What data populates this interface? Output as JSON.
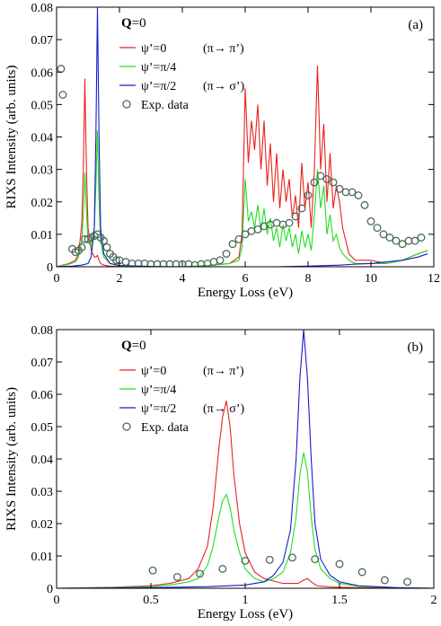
{
  "chart_data": [
    {
      "type": "line",
      "panel_label": "(a)",
      "annotation": {
        "bold": "Q",
        "rest": "=0"
      },
      "xlabel": "Energy Loss (eV)",
      "ylabel": "RIXS Intensity (arb. units)",
      "xlim": [
        0,
        12
      ],
      "ylim": [
        0,
        0.08
      ],
      "xticks": [
        0,
        2,
        4,
        6,
        8,
        10,
        12
      ],
      "xtick_labels": [
        "0",
        "2",
        "4",
        "6",
        "8",
        "10",
        "12"
      ],
      "yticks": [
        0,
        0.01,
        0.02,
        0.03,
        0.04,
        0.05,
        0.06,
        0.07,
        0.08
      ],
      "ytick_labels": [
        "0",
        "0.01",
        "0.02",
        "0.03",
        "0.04",
        "0.05",
        "0.06",
        "0.07",
        "0.08"
      ],
      "legend_position": "top-left",
      "series": [
        {
          "name": "ψ’=0",
          "note": "(π→ π’)",
          "color": "#e8231e",
          "x": [
            0,
            0.2,
            0.4,
            0.6,
            0.7,
            0.8,
            0.85,
            0.9,
            0.95,
            1.0,
            1.1,
            1.2,
            1.25,
            1.3,
            1.35,
            1.4,
            1.5,
            1.7,
            2,
            3,
            4,
            5,
            5.5,
            5.8,
            5.9,
            6.0,
            6.1,
            6.2,
            6.3,
            6.4,
            6.5,
            6.6,
            6.7,
            6.8,
            6.9,
            7.0,
            7.1,
            7.2,
            7.3,
            7.4,
            7.5,
            7.6,
            7.7,
            7.8,
            7.9,
            8.0,
            8.1,
            8.2,
            8.3,
            8.4,
            8.5,
            8.6,
            8.7,
            8.8,
            8.9,
            9.0,
            9.1,
            9.2,
            9.3,
            9.5,
            10,
            10.5,
            11,
            11.5,
            11.8
          ],
          "values": [
            0,
            0.0005,
            0.001,
            0.002,
            0.004,
            0.013,
            0.03,
            0.058,
            0.03,
            0.012,
            0.005,
            0.003,
            0.003,
            0.0035,
            0.002,
            0.001,
            0.0005,
            0.0002,
            0.0001,
            0,
            0,
            0.0005,
            0.001,
            0.003,
            0.01,
            0.055,
            0.032,
            0.045,
            0.036,
            0.05,
            0.03,
            0.045,
            0.025,
            0.038,
            0.02,
            0.035,
            0.018,
            0.03,
            0.02,
            0.027,
            0.015,
            0.022,
            0.012,
            0.032,
            0.018,
            0.026,
            0.012,
            0.03,
            0.062,
            0.03,
            0.044,
            0.02,
            0.035,
            0.018,
            0.025,
            0.02,
            0.012,
            0.008,
            0.004,
            0.002,
            0.002,
            0.001,
            0.002,
            0.004,
            0.005
          ]
        },
        {
          "name": "ψ’=π/4",
          "note": "",
          "color": "#22dd22",
          "x": [
            0,
            0.2,
            0.4,
            0.6,
            0.7,
            0.8,
            0.85,
            0.9,
            0.95,
            1.0,
            1.1,
            1.2,
            1.25,
            1.3,
            1.35,
            1.4,
            1.5,
            1.7,
            2,
            3,
            4,
            5,
            5.5,
            5.8,
            5.9,
            6.0,
            6.1,
            6.2,
            6.3,
            6.4,
            6.5,
            6.6,
            6.7,
            6.8,
            6.9,
            7.0,
            7.1,
            7.2,
            7.3,
            7.4,
            7.5,
            7.6,
            7.7,
            7.8,
            7.9,
            8.0,
            8.1,
            8.2,
            8.3,
            8.4,
            8.5,
            8.6,
            8.7,
            8.8,
            8.9,
            9.0,
            9.1,
            9.2,
            9.3,
            9.5,
            10,
            10.5,
            11,
            11.5,
            11.8
          ],
          "values": [
            0,
            0.0004,
            0.0008,
            0.0015,
            0.003,
            0.008,
            0.016,
            0.029,
            0.017,
            0.008,
            0.006,
            0.012,
            0.025,
            0.042,
            0.02,
            0.008,
            0.003,
            0.001,
            0.0003,
            0,
            0,
            0.0005,
            0.001,
            0.002,
            0.006,
            0.027,
            0.014,
            0.017,
            0.012,
            0.019,
            0.011,
            0.018,
            0.01,
            0.015,
            0.008,
            0.012,
            0.006,
            0.013,
            0.008,
            0.012,
            0.006,
            0.01,
            0.004,
            0.011,
            0.006,
            0.01,
            0.005,
            0.016,
            0.03,
            0.018,
            0.025,
            0.01,
            0.016,
            0.008,
            0.01,
            0.006,
            0.004,
            0.003,
            0.002,
            0.001,
            0.001,
            0.001,
            0.002,
            0.004,
            0.005
          ]
        },
        {
          "name": "ψ’=π/2",
          "note": "(π→ σ’)",
          "color": "#1a1acc",
          "x": [
            0,
            0.5,
            0.8,
            1.0,
            1.1,
            1.2,
            1.25,
            1.3,
            1.35,
            1.4,
            1.5,
            1.7,
            2,
            3,
            4,
            5,
            6,
            7,
            8,
            9,
            9.5,
            10,
            10.5,
            11,
            11.5,
            11.8
          ],
          "values": [
            0,
            0.0002,
            0.0005,
            0.001,
            0.003,
            0.012,
            0.04,
            0.08,
            0.04,
            0.012,
            0.004,
            0.001,
            0.0004,
            0.0001,
            0,
            0,
            0,
            0,
            0.0002,
            0.0005,
            0.0008,
            0.001,
            0.0015,
            0.002,
            0.003,
            0.004
          ]
        },
        {
          "name": "Exp. data",
          "note": "",
          "markers": true,
          "color": "#4a6a5a",
          "x": [
            0.14,
            0.2,
            0.5,
            0.6,
            0.7,
            0.8,
            0.9,
            1.0,
            1.1,
            1.2,
            1.3,
            1.4,
            1.5,
            1.6,
            1.7,
            1.8,
            1.9,
            2.0,
            2.2,
            2.4,
            2.6,
            2.8,
            3.0,
            3.2,
            3.4,
            3.6,
            3.8,
            4.0,
            4.2,
            4.4,
            4.6,
            4.8,
            5.0,
            5.2,
            5.4,
            5.6,
            5.8,
            6.0,
            6.2,
            6.4,
            6.6,
            6.8,
            7.0,
            7.2,
            7.4,
            7.6,
            7.8,
            8.0,
            8.2,
            8.4,
            8.6,
            8.8,
            9.0,
            9.2,
            9.4,
            9.6,
            9.8,
            10.0,
            10.2,
            10.4,
            10.6,
            10.8,
            11.0,
            11.2,
            11.4,
            11.6
          ],
          "values": [
            0.061,
            0.053,
            0.0055,
            0.0045,
            0.005,
            0.006,
            0.0085,
            0.0085,
            0.009,
            0.0095,
            0.01,
            0.009,
            0.008,
            0.006,
            0.004,
            0.003,
            0.002,
            0.002,
            0.0015,
            0.001,
            0.001,
            0.001,
            0.0008,
            0.0008,
            0.0008,
            0.0008,
            0.0008,
            0.0008,
            0.0008,
            0.0005,
            0.0008,
            0.001,
            0.0015,
            0.002,
            0.004,
            0.007,
            0.0085,
            0.01,
            0.011,
            0.0115,
            0.0125,
            0.013,
            0.0135,
            0.013,
            0.0135,
            0.0155,
            0.018,
            0.022,
            0.026,
            0.028,
            0.027,
            0.026,
            0.024,
            0.023,
            0.023,
            0.022,
            0.019,
            0.014,
            0.012,
            0.01,
            0.009,
            0.008,
            0.007,
            0.008,
            0.008,
            0.009
          ]
        }
      ]
    },
    {
      "type": "line",
      "panel_label": "(b)",
      "annotation": {
        "bold": "Q",
        "rest": "=0"
      },
      "xlabel": "Energy Loss (eV)",
      "ylabel": "RIXS Intensity (arb. units)",
      "xlim": [
        0,
        2
      ],
      "ylim": [
        0,
        0.08
      ],
      "xticks": [
        0,
        0.5,
        1,
        1.5,
        2
      ],
      "xtick_labels": [
        "0",
        "0.5",
        "1",
        "1.5",
        "2"
      ],
      "yticks": [
        0,
        0.01,
        0.02,
        0.03,
        0.04,
        0.05,
        0.06,
        0.07,
        0.08
      ],
      "ytick_labels": [
        "0",
        "0.01",
        "0.02",
        "0.03",
        "0.04",
        "0.05",
        "0.06",
        "0.07",
        "0.08"
      ],
      "legend_position": "top-left",
      "series": [
        {
          "name": "ψ’=0",
          "note": "(π→ π’)",
          "color": "#e8231e",
          "x": [
            0,
            0.3,
            0.5,
            0.6,
            0.7,
            0.75,
            0.8,
            0.83,
            0.86,
            0.88,
            0.9,
            0.92,
            0.94,
            0.97,
            1.0,
            1.05,
            1.1,
            1.2,
            1.28,
            1.31,
            1.33,
            1.35,
            1.38,
            1.45,
            1.6,
            1.8,
            2.0
          ],
          "values": [
            0,
            0.0003,
            0.0008,
            0.0015,
            0.003,
            0.006,
            0.013,
            0.025,
            0.043,
            0.053,
            0.058,
            0.05,
            0.035,
            0.02,
            0.011,
            0.005,
            0.003,
            0.0015,
            0.0015,
            0.0025,
            0.003,
            0.002,
            0.0008,
            0.0004,
            0.0002,
            0.0001,
            0
          ]
        },
        {
          "name": "ψ’=π/4",
          "note": "",
          "color": "#22dd22",
          "x": [
            0,
            0.3,
            0.5,
            0.6,
            0.7,
            0.75,
            0.8,
            0.83,
            0.86,
            0.88,
            0.9,
            0.92,
            0.94,
            0.97,
            1.0,
            1.05,
            1.1,
            1.15,
            1.2,
            1.24,
            1.27,
            1.29,
            1.31,
            1.33,
            1.35,
            1.37,
            1.4,
            1.45,
            1.5,
            1.6,
            1.8,
            2.0
          ],
          "values": [
            0,
            0.0002,
            0.0005,
            0.001,
            0.002,
            0.003,
            0.007,
            0.013,
            0.022,
            0.027,
            0.029,
            0.025,
            0.018,
            0.011,
            0.006,
            0.003,
            0.002,
            0.003,
            0.005,
            0.011,
            0.022,
            0.035,
            0.042,
            0.036,
            0.022,
            0.012,
            0.006,
            0.003,
            0.0015,
            0.0006,
            0.0002,
            0
          ]
        },
        {
          "name": "ψ’=π/2",
          "note": "(π→ σ’)",
          "color": "#1a1acc",
          "x": [
            0,
            0.5,
            0.8,
            1.0,
            1.1,
            1.15,
            1.2,
            1.24,
            1.27,
            1.29,
            1.31,
            1.33,
            1.35,
            1.37,
            1.4,
            1.45,
            1.5,
            1.6,
            1.8,
            2.0
          ],
          "values": [
            0,
            0.0002,
            0.0005,
            0.001,
            0.002,
            0.004,
            0.008,
            0.018,
            0.04,
            0.065,
            0.08,
            0.065,
            0.04,
            0.02,
            0.009,
            0.004,
            0.002,
            0.0008,
            0.0002,
            0
          ]
        },
        {
          "name": "Exp. data",
          "note": "",
          "markers": true,
          "color": "#4a6a5a",
          "x": [
            0.51,
            0.64,
            0.76,
            0.88,
            1.0,
            1.13,
            1.25,
            1.37,
            1.5,
            1.62,
            1.74,
            1.86
          ],
          "values": [
            0.0055,
            0.0035,
            0.0045,
            0.006,
            0.0085,
            0.0088,
            0.0095,
            0.009,
            0.0075,
            0.005,
            0.0025,
            0.002
          ]
        }
      ]
    }
  ]
}
